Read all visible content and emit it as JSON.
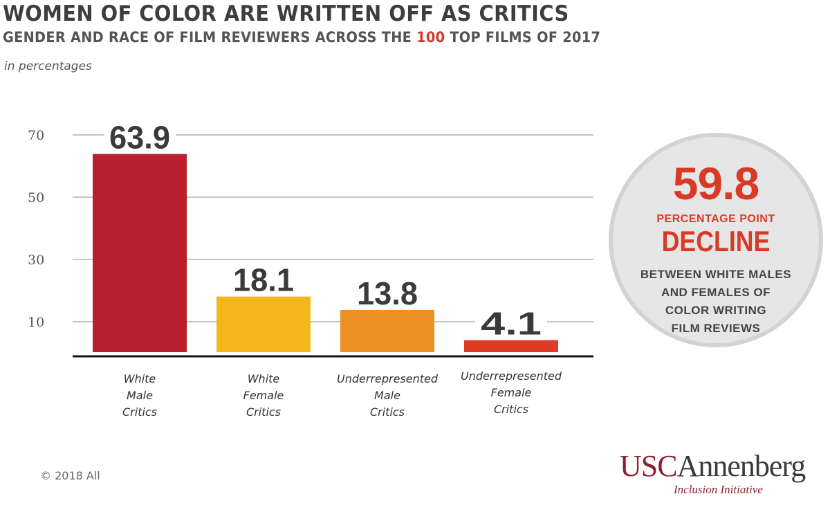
{
  "header": {
    "title": "WOMEN OF COLOR ARE WRITTEN OFF AS CRITICS",
    "subtitle_pre": "GENDER AND RACE OF FILM REVIEWERS ACROSS THE ",
    "subtitle_highlight": "100",
    "subtitle_post": " TOP FILMS OF 2017",
    "unit_note": "in percentages"
  },
  "chart_data": {
    "type": "bar",
    "title": "WOMEN OF COLOR ARE WRITTEN OFF AS CRITICS",
    "subtitle": "GENDER AND RACE OF FILM REVIEWERS ACROSS THE 100 TOP FILMS OF 2017",
    "ylabel": "in percentages",
    "xlabel": "",
    "ylim": [
      0,
      70
    ],
    "yticks": [
      10,
      30,
      50,
      70
    ],
    "grid": true,
    "categories": [
      [
        "White",
        "Male",
        "Critics"
      ],
      [
        "White",
        "Female",
        "Critics"
      ],
      [
        "Underrepresented",
        "Male",
        "Critics"
      ],
      [
        "Underrepresented",
        "Female",
        "Critics"
      ]
    ],
    "values": [
      63.9,
      18.1,
      13.8,
      4.1
    ],
    "value_labels": [
      "63.9",
      "18.1",
      "13.8",
      "4.1"
    ],
    "colors": [
      "#b91f2f",
      "#f5b61c",
      "#ee8f24",
      "#df3a26"
    ]
  },
  "callout": {
    "value": "59.8",
    "unit": "PERCENTAGE POINT",
    "word": "DECLINE",
    "description": [
      "BETWEEN WHITE MALES",
      "AND FEMALES OF",
      "COLOR WRITING",
      "FILM REVIEWS"
    ],
    "accent_color": "#d93a26"
  },
  "footer": {
    "copyright": "© 2018 All",
    "logo_usc": "USC",
    "logo_annenberg": "Annenberg",
    "logo_sub": "Inclusion Initiative"
  }
}
